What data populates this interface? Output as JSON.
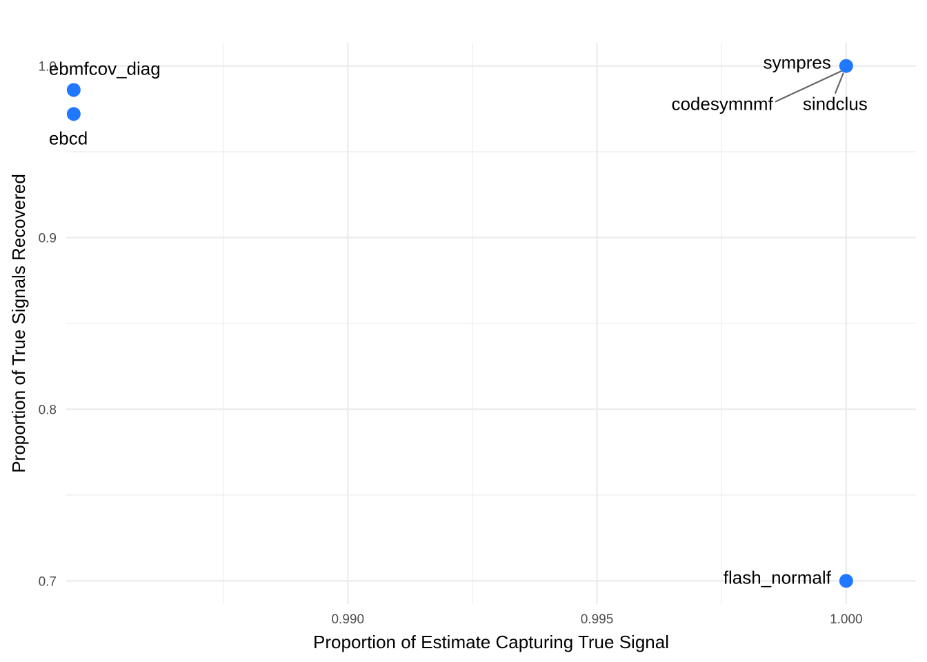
{
  "chart_data": {
    "type": "scatter",
    "title": "",
    "xlabel": "Proportion of Estimate Capturing True Signal",
    "ylabel": "Proportion of True Signals Recovered",
    "xlim": [
      0.98435,
      1.0014
    ],
    "ylim": [
      0.6865,
      1.0135
    ],
    "x_ticks": [
      0.99,
      0.995,
      1.0
    ],
    "x_tick_labels": [
      "0.990",
      "0.995",
      "1.000"
    ],
    "x_minor_ticks": [
      0.9875,
      0.9925,
      0.9975
    ],
    "y_ticks": [
      0.7,
      0.8,
      0.9,
      1.0
    ],
    "y_tick_labels": [
      "0.7",
      "0.8",
      "0.9",
      "1.0"
    ],
    "y_minor_ticks": [
      0.75,
      0.85,
      0.95
    ],
    "grid": true,
    "legend": "none",
    "point_color": "#1f78ff",
    "points": [
      {
        "label": "ebmfcov_diag",
        "x": 0.9845,
        "y": 0.986,
        "label_pos": "above-right"
      },
      {
        "label": "ebcd",
        "x": 0.9845,
        "y": 0.972,
        "label_pos": "below-right"
      },
      {
        "label": "sympres",
        "x": 1.0,
        "y": 1.0,
        "label_pos": "left"
      },
      {
        "label": "codesymnmf",
        "x": 1.0,
        "y": 1.0,
        "label_pos": "lower-left-leader"
      },
      {
        "label": "sindclus",
        "x": 1.0,
        "y": 1.0,
        "label_pos": "below-leader"
      },
      {
        "label": "flash_normalf",
        "x": 1.0,
        "y": 0.7,
        "label_pos": "left"
      }
    ]
  }
}
